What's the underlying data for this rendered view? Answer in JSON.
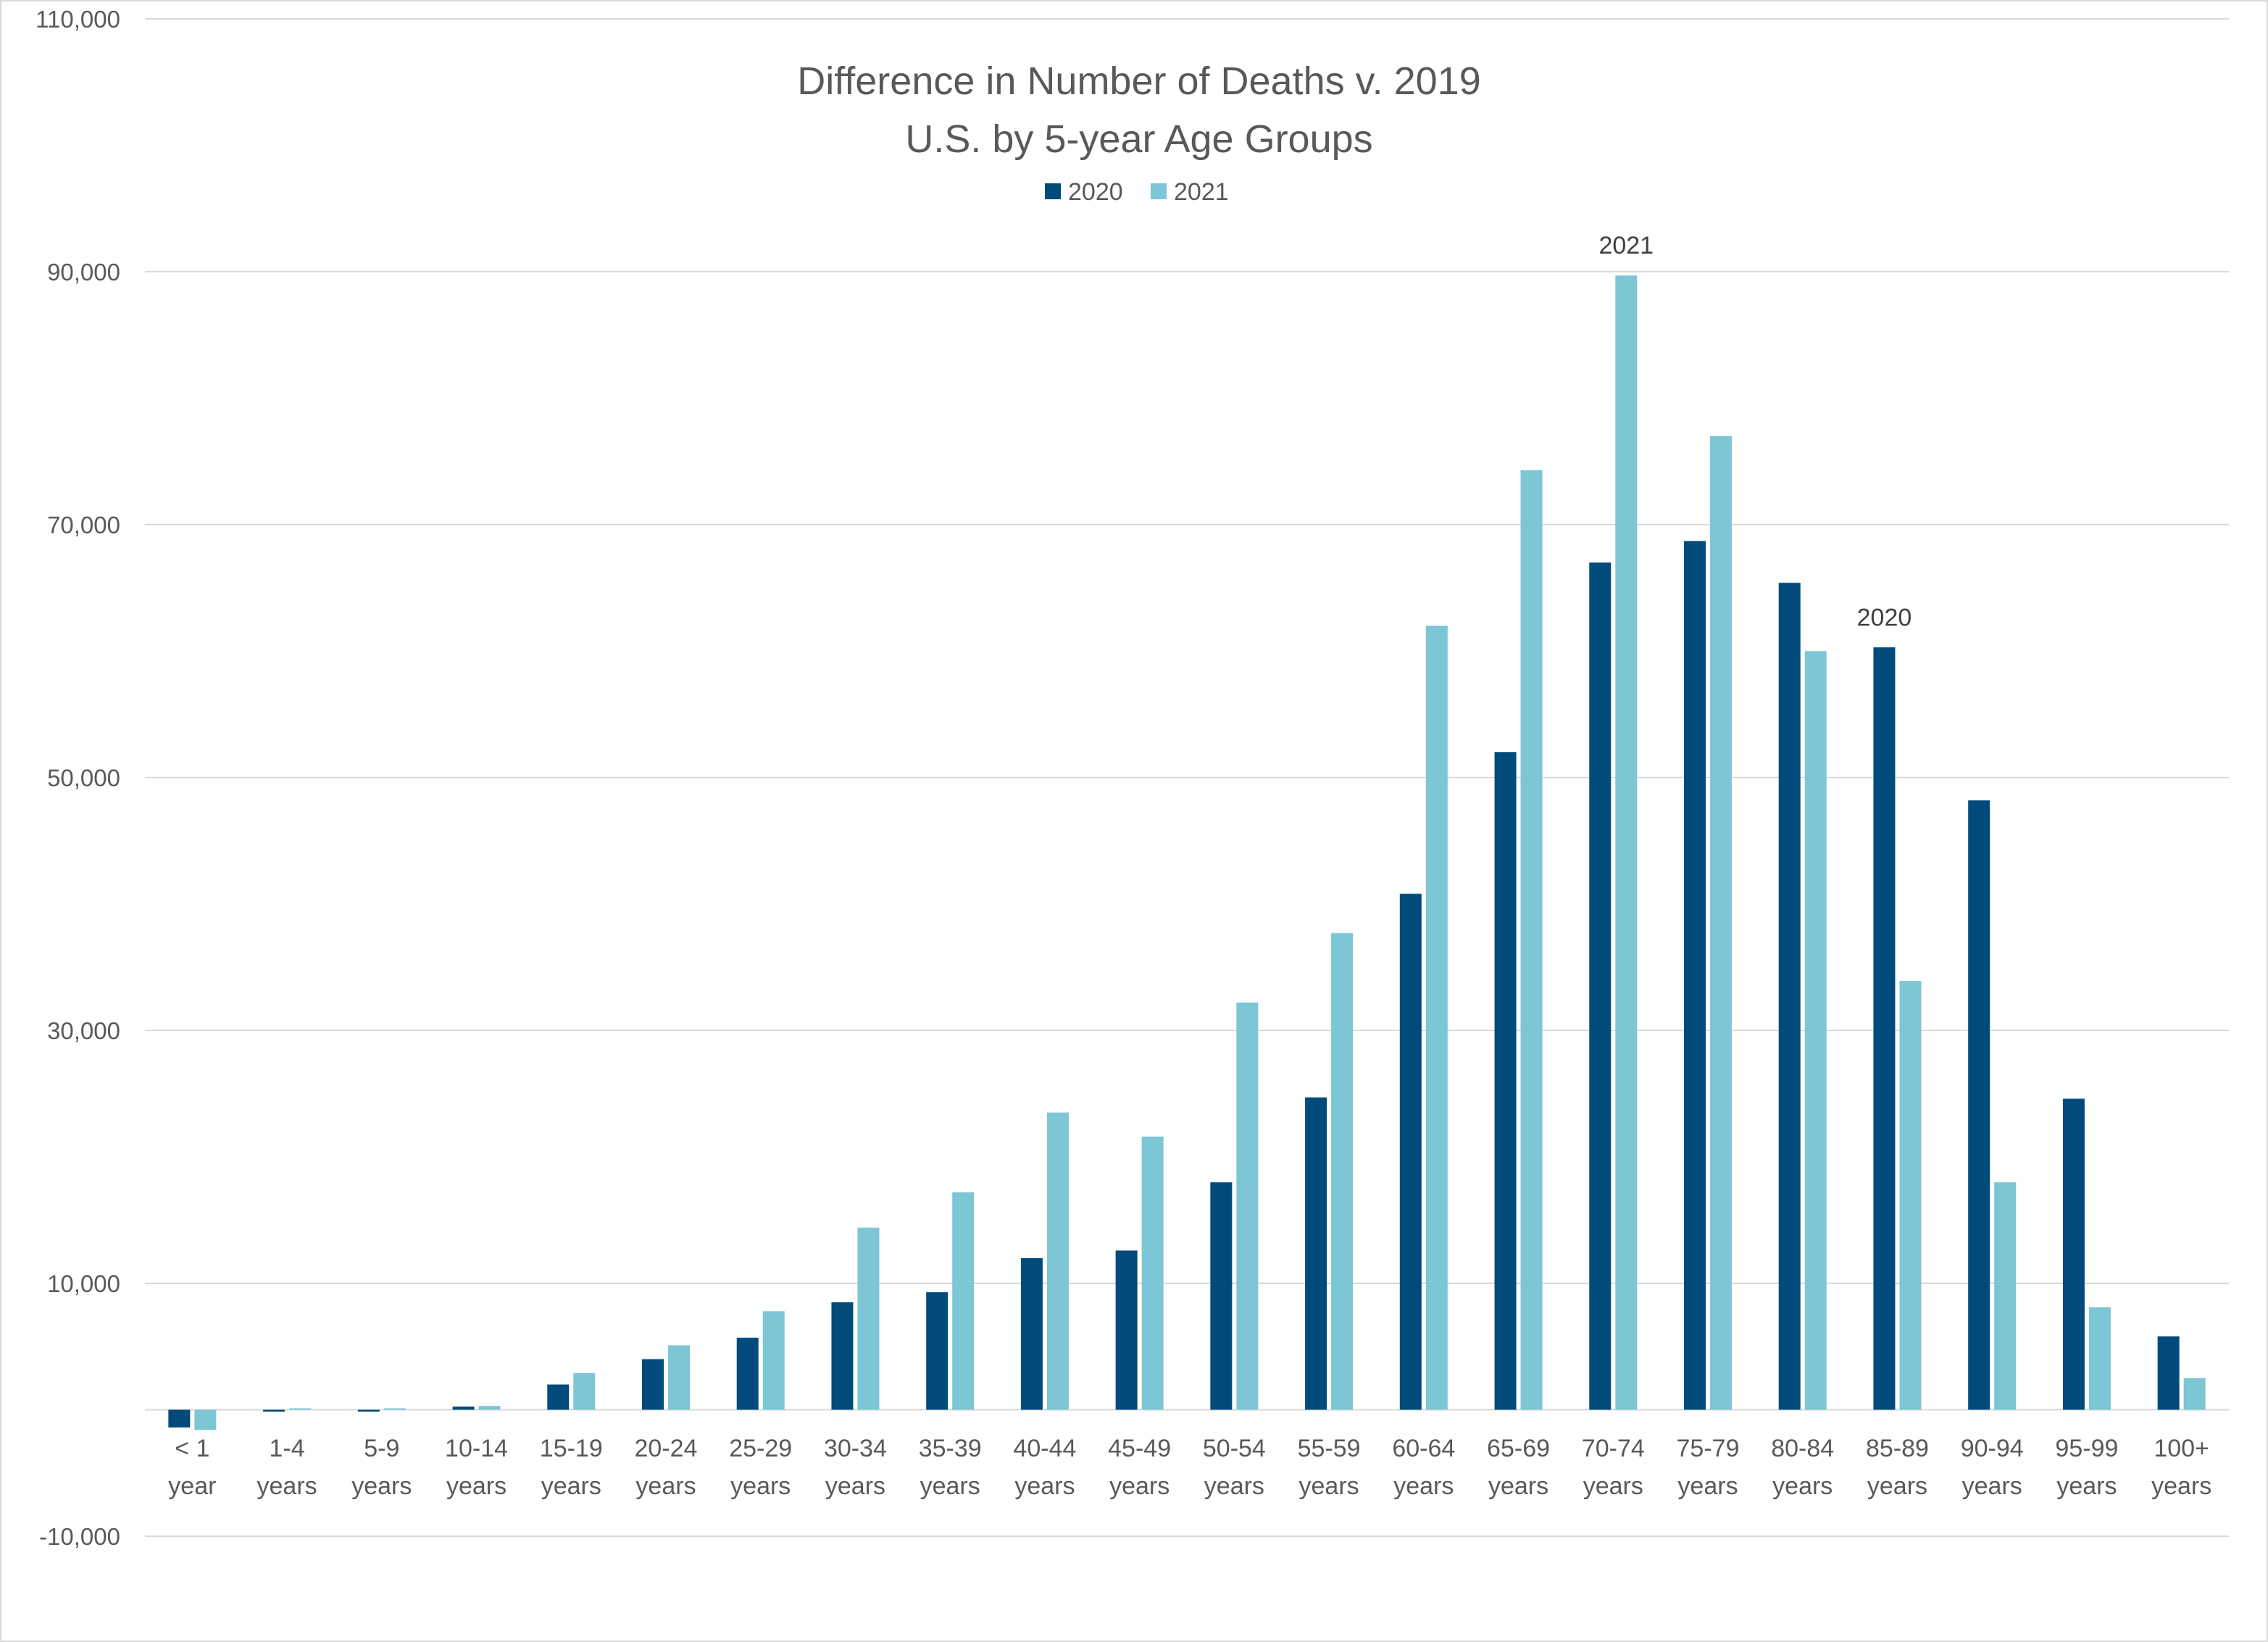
{
  "chart_data": {
    "type": "bar",
    "title": [
      "Difference in Number of Deaths v. 2019",
      "U.S. by 5-year Age Groups"
    ],
    "xlabel": "",
    "ylabel": "",
    "ylim": [
      -10000,
      110000
    ],
    "yticks": [
      -10000,
      10000,
      30000,
      50000,
      70000,
      90000,
      110000
    ],
    "ytick_labels": [
      "-10,000",
      "10,000",
      "30,000",
      "50,000",
      "70,000",
      "90,000",
      "110,000"
    ],
    "grid": true,
    "legend_position": "top-center",
    "categories": [
      [
        "< 1",
        "year"
      ],
      [
        "1-4",
        "years"
      ],
      [
        "5-9",
        "years"
      ],
      [
        "10-14",
        "years"
      ],
      [
        "15-19",
        "years"
      ],
      [
        "20-24",
        "years"
      ],
      [
        "25-29",
        "years"
      ],
      [
        "30-34",
        "years"
      ],
      [
        "35-39",
        "years"
      ],
      [
        "40-44",
        "years"
      ],
      [
        "45-49",
        "years"
      ],
      [
        "50-54",
        "years"
      ],
      [
        "55-59",
        "years"
      ],
      [
        "60-64",
        "years"
      ],
      [
        "65-69",
        "years"
      ],
      [
        "70-74",
        "years"
      ],
      [
        "75-79",
        "years"
      ],
      [
        "80-84",
        "years"
      ],
      [
        "85-89",
        "years"
      ],
      [
        "90-94",
        "years"
      ],
      [
        "95-99",
        "years"
      ],
      [
        "100+",
        "years"
      ]
    ],
    "series": [
      {
        "name": "2020",
        "color": "#004b7c",
        "values": [
          -1400,
          -150,
          -150,
          250,
          2000,
          4000,
          5700,
          8500,
          9300,
          12000,
          12600,
          18000,
          24700,
          40800,
          52000,
          67000,
          68700,
          65400,
          60300,
          48200,
          24600,
          5800
        ]
      },
      {
        "name": "2021",
        "color": "#7cc6d6",
        "values": [
          -1600,
          0,
          0,
          300,
          2900,
          5100,
          7800,
          14400,
          17200,
          23500,
          21600,
          32200,
          37700,
          62000,
          74300,
          89700,
          77000,
          60000,
          33900,
          18000,
          8100,
          2500
        ]
      }
    ],
    "annotations": [
      {
        "text": "2021",
        "category_index": 15,
        "series_index": 1
      },
      {
        "text": "2020",
        "category_index": 18,
        "series_index": 0
      }
    ]
  }
}
